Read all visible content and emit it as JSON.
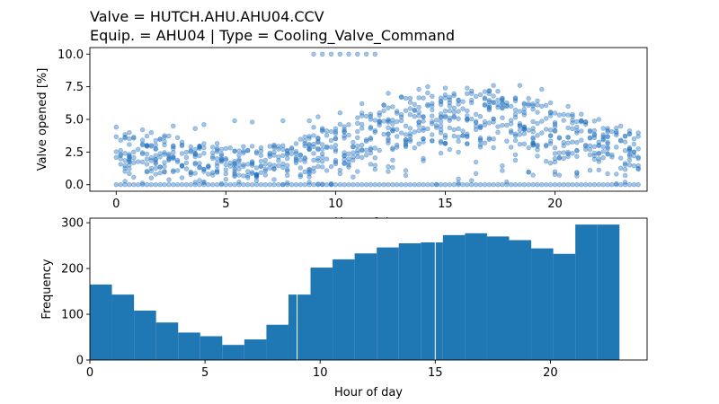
{
  "title_line1": "Valve = HUTCH.AHU.AHU04.CCV",
  "title_line2": "Equip. = AHU04 | Type = Cooling_Valve_Command",
  "colors": {
    "scatter": "#1f6fbf",
    "bar": "#1f77b4",
    "axis": "#000000"
  },
  "chart_data": [
    {
      "type": "scatter",
      "xlabel": "Hour of day",
      "ylabel": "Valve opened [%]",
      "xlim": [
        -1.2,
        24.2
      ],
      "ylim": [
        -0.5,
        10.5
      ],
      "xticks": [
        0,
        5,
        10,
        15,
        20
      ],
      "yticks": [
        0.0,
        2.5,
        5.0,
        7.5,
        10.0
      ],
      "ytick_labels": [
        "0.0",
        "2.5",
        "5.0",
        "7.5",
        "10.0"
      ],
      "marker_alpha": 0.4,
      "hours_per_tick_fraction": [
        0,
        0.2,
        0.4,
        0.6,
        0.8
      ],
      "band_lo_by_hour": [
        1.2,
        1.0,
        1.0,
        0.8,
        0.8,
        0.7,
        0.7,
        0.8,
        0.8,
        1.0,
        1.5,
        2.0,
        2.5,
        3.0,
        3.0,
        3.0,
        3.0,
        3.0,
        2.8,
        2.5,
        2.0,
        1.8,
        1.5,
        1.2
      ],
      "band_hi_by_hour": [
        4.0,
        4.0,
        3.8,
        3.5,
        3.2,
        3.0,
        3.0,
        3.2,
        3.8,
        4.5,
        5.0,
        5.5,
        6.2,
        7.0,
        7.2,
        7.2,
        7.2,
        7.2,
        7.0,
        6.5,
        5.5,
        5.0,
        4.5,
        4.2
      ],
      "max_by_hour": [
        4.4,
        4.2,
        4.5,
        4.3,
        4.6,
        4.9,
        4.8,
        4.9,
        4.9,
        5.2,
        5.5,
        6.2,
        7.0,
        7.3,
        7.5,
        7.4,
        7.4,
        7.6,
        7.6,
        7.3,
        6.0,
        5.4,
        5.0,
        4.5
      ],
      "outliers": [
        {
          "x": 9.0,
          "y": 10.0
        },
        {
          "x": 9.4,
          "y": 10.0
        },
        {
          "x": 9.8,
          "y": 10.0
        },
        {
          "x": 10.2,
          "y": 10.0
        },
        {
          "x": 10.6,
          "y": 10.0
        },
        {
          "x": 11.0,
          "y": 10.0
        },
        {
          "x": 11.4,
          "y": 10.0
        },
        {
          "x": 11.8,
          "y": 10.0
        }
      ]
    },
    {
      "type": "bar",
      "xlabel": "Hour of day",
      "ylabel": "Frequency",
      "xlim": [
        0,
        24.2
      ],
      "ylim": [
        0,
        310
      ],
      "xticks": [
        0,
        5,
        10,
        15,
        20
      ],
      "yticks": [
        0,
        100,
        200,
        300
      ],
      "bin_edges": [
        0,
        0.958,
        1.917,
        2.875,
        3.833,
        4.792,
        5.75,
        6.708,
        7.667,
        8.625,
        9.583,
        10.542,
        11.5,
        12.458,
        13.417,
        14.375,
        15.333,
        16.292,
        17.25,
        18.208,
        19.167,
        20.125,
        21.083,
        22.042,
        23.0
      ],
      "values": [
        165,
        143,
        108,
        82,
        60,
        52,
        33,
        45,
        77,
        143,
        202,
        220,
        233,
        246,
        255,
        257,
        273,
        277,
        270,
        262,
        244,
        232,
        296,
        296
      ]
    }
  ]
}
